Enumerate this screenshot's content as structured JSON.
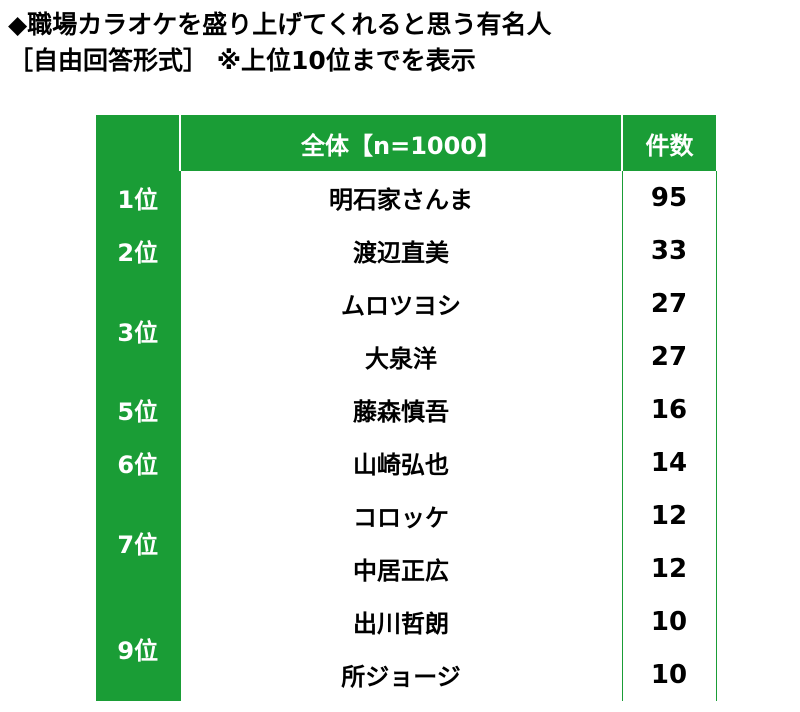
{
  "title_line1": "◆職場カラオケを盛り上げてくれると思う有名人",
  "title_line2": "［自由回答形式］ ※上位10位までを表示",
  "chart_data": {
    "type": "table",
    "header": {
      "blank": "",
      "name_col": "全体【n=1000】",
      "count_col": "件数"
    },
    "groups": [
      {
        "rank": "1位",
        "rows": [
          {
            "name": "明石家さんま",
            "count": "95"
          }
        ]
      },
      {
        "rank": "2位",
        "rows": [
          {
            "name": "渡辺直美",
            "count": "33"
          }
        ]
      },
      {
        "rank": "3位",
        "rows": [
          {
            "name": "ムロツヨシ",
            "count": "27"
          },
          {
            "name": "大泉洋",
            "count": "27"
          }
        ]
      },
      {
        "rank": "5位",
        "rows": [
          {
            "name": "藤森慎吾",
            "count": "16"
          }
        ]
      },
      {
        "rank": "6位",
        "rows": [
          {
            "name": "山崎弘也",
            "count": "14"
          }
        ]
      },
      {
        "rank": "7位",
        "rows": [
          {
            "name": "コロッケ",
            "count": "12"
          },
          {
            "name": "中居正広",
            "count": "12"
          }
        ]
      },
      {
        "rank": "9位",
        "rows": [
          {
            "name": "出川哲朗",
            "count": "10"
          },
          {
            "name": "所ジョージ",
            "count": "10"
          }
        ]
      }
    ]
  },
  "colors": {
    "header_green": "#1a9d36"
  }
}
